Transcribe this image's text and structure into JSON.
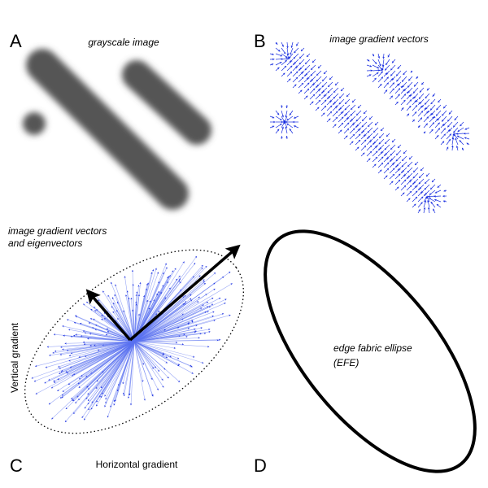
{
  "panels": [
    {
      "label": "A",
      "caption": "grayscale image"
    },
    {
      "label": "B",
      "caption": "image gradient vectors"
    },
    {
      "label": "C",
      "caption": [
        "image gradient vectors",
        "and eigenvectors"
      ],
      "x_axis": "Horizontal gradient",
      "y_axis": "Vertical gradient"
    },
    {
      "label": "D",
      "caption": [
        "edge fabric ellipse",
        "(EFE)"
      ]
    }
  ]
}
